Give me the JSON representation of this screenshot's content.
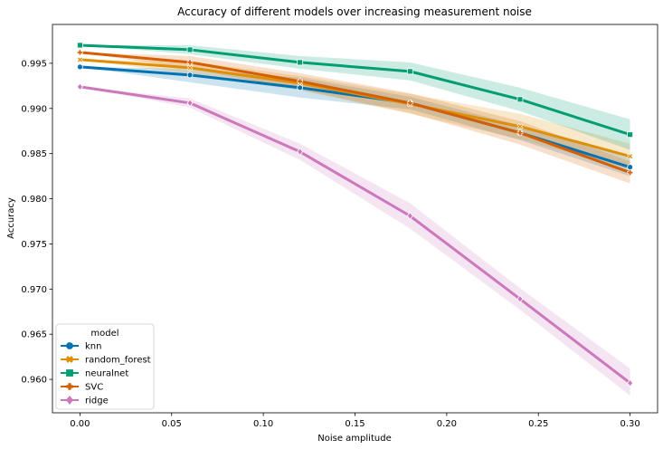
{
  "chart_data": {
    "type": "line",
    "title": "Accuracy of different models over increasing measurement noise",
    "xlabel": "Noise amplitude",
    "ylabel": "Accuracy",
    "xlim": [
      -0.015,
      0.315
    ],
    "ylim": [
      0.9563,
      0.9993
    ],
    "x_ticks": [
      "0.00",
      "0.05",
      "0.10",
      "0.15",
      "0.20",
      "0.25",
      "0.30"
    ],
    "y_ticks": [
      "0.960",
      "0.965",
      "0.970",
      "0.975",
      "0.980",
      "0.985",
      "0.990",
      "0.995"
    ],
    "grid": false,
    "legend": {
      "title": "model",
      "placement": "lower-left"
    },
    "x": [
      0.0,
      0.06,
      0.12,
      0.18,
      0.24,
      0.3
    ],
    "series": [
      {
        "name": "knn",
        "color": "#0173b2",
        "marker": "circle",
        "values": [
          0.9946,
          0.9937,
          0.9923,
          0.9906,
          0.9873,
          0.9835
        ],
        "lower": [
          0.9946,
          0.9929,
          0.9912,
          0.9899,
          0.9865,
          0.9825
        ],
        "upper": [
          0.9946,
          0.9944,
          0.9934,
          0.9913,
          0.9881,
          0.9845
        ]
      },
      {
        "name": "random_forest",
        "color": "#de8f05",
        "marker": "x",
        "values": [
          0.9954,
          0.9945,
          0.9928,
          0.9905,
          0.988,
          0.9847
        ],
        "lower": [
          0.9954,
          0.9938,
          0.992,
          0.9894,
          0.9866,
          0.9833
        ],
        "upper": [
          0.9954,
          0.9952,
          0.9936,
          0.9916,
          0.9894,
          0.9861
        ]
      },
      {
        "name": "neuralnet",
        "color": "#029e73",
        "marker": "square",
        "values": [
          0.997,
          0.9965,
          0.9951,
          0.9941,
          0.991,
          0.9871
        ],
        "lower": [
          0.997,
          0.996,
          0.9944,
          0.9931,
          0.9897,
          0.9854
        ],
        "upper": [
          0.997,
          0.997,
          0.9958,
          0.9951,
          0.9923,
          0.9888
        ]
      },
      {
        "name": "SVC",
        "color": "#d55e00",
        "marker": "plus",
        "values": [
          0.9962,
          0.9951,
          0.993,
          0.9906,
          0.9873,
          0.9829
        ],
        "lower": [
          0.9962,
          0.9944,
          0.9921,
          0.9895,
          0.986,
          0.9817
        ],
        "upper": [
          0.9962,
          0.9958,
          0.9939,
          0.9917,
          0.9886,
          0.9841
        ]
      },
      {
        "name": "ridge",
        "color": "#cc78bc",
        "marker": "diamond",
        "values": [
          0.9924,
          0.9906,
          0.9852,
          0.9781,
          0.9689,
          0.9596
        ],
        "lower": [
          0.9924,
          0.9901,
          0.9843,
          0.9767,
          0.9677,
          0.9582
        ],
        "upper": [
          0.9924,
          0.9911,
          0.9861,
          0.9795,
          0.9701,
          0.9612
        ]
      }
    ]
  }
}
